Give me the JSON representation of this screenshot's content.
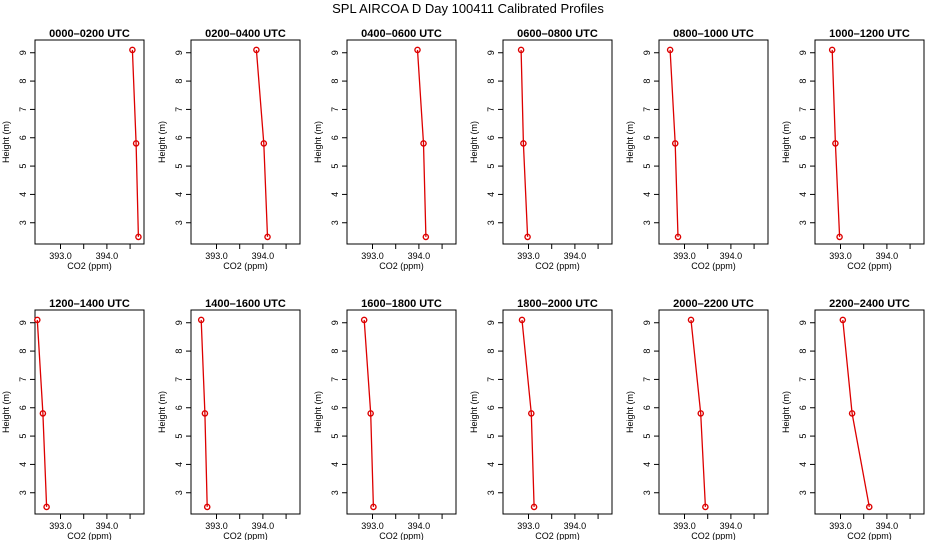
{
  "title": "SPL AIRCOA D  Day 100411  Calibrated Profiles",
  "colors": {
    "series": "#dd0000",
    "axis": "#000000"
  },
  "chart_data": [
    {
      "type": "line",
      "title": "0000–0200 UTC",
      "xlabel": "CO2 (ppm)",
      "ylabel": "Height (m)",
      "xlim": [
        392.45,
        394.8
      ],
      "ylim": [
        2.25,
        9.45
      ],
      "xticks": [
        393.0,
        393.5,
        394.0,
        394.5
      ],
      "xtick_labels": [
        "393.0",
        "",
        "394.0",
        ""
      ],
      "yticks": [
        3,
        4,
        5,
        6,
        7,
        8,
        9
      ],
      "x": [
        394.55,
        394.63,
        394.68
      ],
      "y": [
        9.1,
        5.8,
        2.5
      ]
    },
    {
      "type": "line",
      "title": "0200–0400 UTC",
      "xlabel": "CO2 (ppm)",
      "ylabel": "Height (m)",
      "xlim": [
        392.45,
        394.8
      ],
      "ylim": [
        2.25,
        9.45
      ],
      "xticks": [
        393.0,
        393.5,
        394.0,
        394.5
      ],
      "xtick_labels": [
        "393.0",
        "",
        "394.0",
        ""
      ],
      "yticks": [
        3,
        4,
        5,
        6,
        7,
        8,
        9
      ],
      "x": [
        393.86,
        394.02,
        394.1
      ],
      "y": [
        9.1,
        5.8,
        2.5
      ]
    },
    {
      "type": "line",
      "title": "0400–0600 UTC",
      "xlabel": "CO2 (ppm)",
      "ylabel": "Height (m)",
      "xlim": [
        392.45,
        394.8
      ],
      "ylim": [
        2.25,
        9.45
      ],
      "xticks": [
        393.0,
        393.5,
        394.0,
        394.5
      ],
      "xtick_labels": [
        "393.0",
        "",
        "394.0",
        ""
      ],
      "yticks": [
        3,
        4,
        5,
        6,
        7,
        8,
        9
      ],
      "x": [
        393.97,
        394.1,
        394.15
      ],
      "y": [
        9.1,
        5.8,
        2.5
      ]
    },
    {
      "type": "line",
      "title": "0600–0800 UTC",
      "xlabel": "CO2 (ppm)",
      "ylabel": "Height (m)",
      "xlim": [
        392.45,
        394.8
      ],
      "ylim": [
        2.25,
        9.45
      ],
      "xticks": [
        393.0,
        393.5,
        394.0,
        394.5
      ],
      "xtick_labels": [
        "393.0",
        "",
        "394.0",
        ""
      ],
      "yticks": [
        3,
        4,
        5,
        6,
        7,
        8,
        9
      ],
      "x": [
        392.84,
        392.89,
        392.98
      ],
      "y": [
        9.1,
        5.8,
        2.5
      ]
    },
    {
      "type": "line",
      "title": "0800–1000 UTC",
      "xlabel": "CO2 (ppm)",
      "ylabel": "Height (m)",
      "xlim": [
        392.45,
        394.8
      ],
      "ylim": [
        2.25,
        9.45
      ],
      "xticks": [
        393.0,
        393.5,
        394.0,
        394.5
      ],
      "xtick_labels": [
        "393.0",
        "",
        "394.0",
        ""
      ],
      "yticks": [
        3,
        4,
        5,
        6,
        7,
        8,
        9
      ],
      "x": [
        392.69,
        392.8,
        392.86
      ],
      "y": [
        9.1,
        5.8,
        2.5
      ]
    },
    {
      "type": "line",
      "title": "1000–1200 UTC",
      "xlabel": "CO2 (ppm)",
      "ylabel": "Height (m)",
      "xlim": [
        392.45,
        394.8
      ],
      "ylim": [
        2.25,
        9.45
      ],
      "xticks": [
        393.0,
        393.5,
        394.0,
        394.5
      ],
      "xtick_labels": [
        "393.0",
        "",
        "394.0",
        ""
      ],
      "yticks": [
        3,
        4,
        5,
        6,
        7,
        8,
        9
      ],
      "x": [
        392.82,
        392.89,
        392.98
      ],
      "y": [
        9.1,
        5.8,
        2.5
      ]
    },
    {
      "type": "line",
      "title": "1200–1400 UTC",
      "xlabel": "CO2 (ppm)",
      "ylabel": "Height (m)",
      "xlim": [
        392.45,
        394.8
      ],
      "ylim": [
        2.25,
        9.45
      ],
      "xticks": [
        393.0,
        393.5,
        394.0,
        394.5
      ],
      "xtick_labels": [
        "393.0",
        "",
        "394.0",
        ""
      ],
      "yticks": [
        3,
        4,
        5,
        6,
        7,
        8,
        9
      ],
      "x": [
        392.5,
        392.62,
        392.7
      ],
      "y": [
        9.1,
        5.8,
        2.5
      ]
    },
    {
      "type": "line",
      "title": "1400–1600 UTC",
      "xlabel": "CO2 (ppm)",
      "ylabel": "Height (m)",
      "xlim": [
        392.45,
        394.8
      ],
      "ylim": [
        2.25,
        9.45
      ],
      "xticks": [
        393.0,
        393.5,
        394.0,
        394.5
      ],
      "xtick_labels": [
        "393.0",
        "",
        "394.0",
        ""
      ],
      "yticks": [
        3,
        4,
        5,
        6,
        7,
        8,
        9
      ],
      "x": [
        392.67,
        392.75,
        392.8
      ],
      "y": [
        9.1,
        5.8,
        2.5
      ]
    },
    {
      "type": "line",
      "title": "1600–1800 UTC",
      "xlabel": "CO2 (ppm)",
      "ylabel": "Height (m)",
      "xlim": [
        392.45,
        394.8
      ],
      "ylim": [
        2.25,
        9.45
      ],
      "xticks": [
        393.0,
        393.5,
        394.0,
        394.5
      ],
      "xtick_labels": [
        "393.0",
        "",
        "394.0",
        ""
      ],
      "yticks": [
        3,
        4,
        5,
        6,
        7,
        8,
        9
      ],
      "x": [
        392.82,
        392.96,
        393.02
      ],
      "y": [
        9.1,
        5.8,
        2.5
      ]
    },
    {
      "type": "line",
      "title": "1800–2000 UTC",
      "xlabel": "CO2 (ppm)",
      "ylabel": "Height (m)",
      "xlim": [
        392.45,
        394.8
      ],
      "ylim": [
        2.25,
        9.45
      ],
      "xticks": [
        393.0,
        393.5,
        394.0,
        394.5
      ],
      "xtick_labels": [
        "393.0",
        "",
        "394.0",
        ""
      ],
      "yticks": [
        3,
        4,
        5,
        6,
        7,
        8,
        9
      ],
      "x": [
        392.86,
        393.06,
        393.12
      ],
      "y": [
        9.1,
        5.8,
        2.5
      ]
    },
    {
      "type": "line",
      "title": "2000–2200 UTC",
      "xlabel": "CO2 (ppm)",
      "ylabel": "Height (m)",
      "xlim": [
        392.45,
        394.8
      ],
      "ylim": [
        2.25,
        9.45
      ],
      "xticks": [
        393.0,
        393.5,
        394.0,
        394.5
      ],
      "xtick_labels": [
        "393.0",
        "",
        "394.0",
        ""
      ],
      "yticks": [
        3,
        4,
        5,
        6,
        7,
        8,
        9
      ],
      "x": [
        393.14,
        393.35,
        393.45
      ],
      "y": [
        9.1,
        5.8,
        2.5
      ]
    },
    {
      "type": "line",
      "title": "2200–2400 UTC",
      "xlabel": "CO2 (ppm)",
      "ylabel": "Height (m)",
      "xlim": [
        392.45,
        394.8
      ],
      "ylim": [
        2.25,
        9.45
      ],
      "xticks": [
        393.0,
        393.5,
        394.0,
        394.5
      ],
      "xtick_labels": [
        "393.0",
        "",
        "394.0",
        ""
      ],
      "yticks": [
        3,
        4,
        5,
        6,
        7,
        8,
        9
      ],
      "x": [
        393.05,
        393.25,
        393.62
      ],
      "y": [
        9.1,
        5.8,
        2.5
      ]
    }
  ]
}
